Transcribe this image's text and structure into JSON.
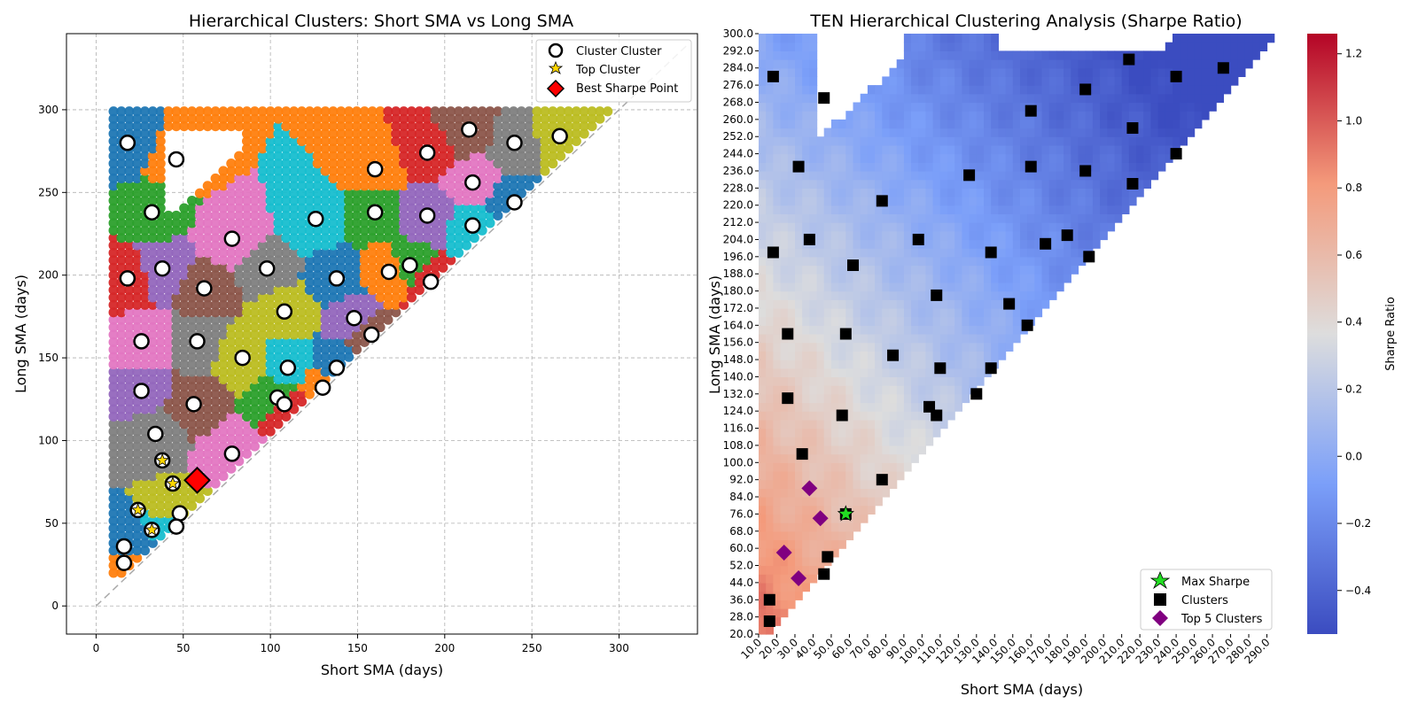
{
  "chart_data": [
    {
      "type": "scatter",
      "title": "Hierarchical Clusters: Short SMA vs Long SMA",
      "xlabel": "Short SMA (days)",
      "ylabel": "Long SMA (days)",
      "xlim": [
        -17,
        345
      ],
      "ylim": [
        -17,
        346
      ],
      "xticks": [
        0,
        50,
        100,
        150,
        200,
        250,
        300
      ],
      "yticks": [
        0,
        50,
        100,
        150,
        200,
        250,
        300
      ],
      "grid": true,
      "legend_position": "top-right",
      "legend": [
        "Cluster Cluster",
        "Top Cluster",
        "Best Sharpe Point"
      ],
      "reference_line": {
        "from": [
          0,
          0
        ],
        "to": [
          340,
          340
        ],
        "style": "dashed",
        "color": "#aaaaaa"
      },
      "cluster_palette": [
        "#1f77b4",
        "#ff7f0e",
        "#2ca02c",
        "#d62728",
        "#9467bd",
        "#8c564b",
        "#e377c2",
        "#7f7f7f",
        "#bcbd22",
        "#17becf"
      ],
      "cluster_centers": [
        [
          18,
          280
        ],
        [
          46,
          270
        ],
        [
          32,
          238
        ],
        [
          18,
          198
        ],
        [
          38,
          204
        ],
        [
          62,
          192
        ],
        [
          78,
          222
        ],
        [
          98,
          204
        ],
        [
          108,
          178
        ],
        [
          126,
          234
        ],
        [
          138,
          198
        ],
        [
          160,
          264
        ],
        [
          160,
          238
        ],
        [
          190,
          274
        ],
        [
          190,
          236
        ],
        [
          214,
          288
        ],
        [
          216,
          256
        ],
        [
          240,
          280
        ],
        [
          266,
          284
        ],
        [
          216,
          230
        ],
        [
          240,
          244
        ],
        [
          168,
          202
        ],
        [
          180,
          206
        ],
        [
          192,
          196
        ],
        [
          148,
          174
        ],
        [
          158,
          164
        ],
        [
          26,
          160
        ],
        [
          58,
          160
        ],
        [
          84,
          150
        ],
        [
          110,
          144
        ],
        [
          138,
          144
        ],
        [
          130,
          132
        ],
        [
          104,
          126
        ],
        [
          108,
          122
        ],
        [
          26,
          130
        ],
        [
          56,
          122
        ],
        [
          78,
          92
        ],
        [
          34,
          104
        ],
        [
          48,
          56
        ],
        [
          46,
          48
        ],
        [
          16,
          36
        ],
        [
          16,
          26
        ]
      ],
      "top_clusters": [
        [
          38,
          88
        ],
        [
          24,
          58
        ],
        [
          44,
          74
        ],
        [
          32,
          46
        ]
      ],
      "best_sharpe_point": [
        58,
        76
      ],
      "series": [
        {
          "name": "Cluster Cluster",
          "values": "cluster_centers"
        },
        {
          "name": "Top Cluster",
          "values": "top_clusters"
        },
        {
          "name": "Best Sharpe Point",
          "values": "best_sharpe_point"
        }
      ]
    },
    {
      "type": "heatmap",
      "title": "TEN Hierarchical Clustering Analysis (Sharpe Ratio)",
      "xlabel": "Short SMA (days)",
      "ylabel": "Long SMA (days)",
      "x_range": [
        10,
        300
      ],
      "y_range": [
        20,
        300
      ],
      "xticks": [
        "10.0",
        "20.0",
        "30.0",
        "40.0",
        "50.0",
        "60.0",
        "70.0",
        "80.0",
        "90.0",
        "100.0",
        "110.0",
        "120.0",
        "130.0",
        "140.0",
        "150.0",
        "160.0",
        "170.0",
        "180.0",
        "190.0",
        "200.0",
        "210.0",
        "220.0",
        "230.0",
        "240.0",
        "250.0",
        "260.0",
        "270.0",
        "280.0",
        "290.0"
      ],
      "yticks": [
        "300.0",
        "292.0",
        "284.0",
        "276.0",
        "268.0",
        "260.0",
        "252.0",
        "244.0",
        "236.0",
        "228.0",
        "220.0",
        "212.0",
        "204.0",
        "196.0",
        "188.0",
        "180.0",
        "172.0",
        "164.0",
        "156.0",
        "148.0",
        "140.0",
        "132.0",
        "124.0",
        "116.0",
        "108.0",
        "100.0",
        "92.0",
        "84.0",
        "76.0",
        "68.0",
        "60.0",
        "52.0",
        "44.0",
        "36.0",
        "28.0",
        "20.0"
      ],
      "colorbar_label": "Sharpe Ratio",
      "colorbar_range": [
        -0.53,
        1.26
      ],
      "colorbar_ticks": [
        "1.2",
        "1.0",
        "0.8",
        "0.6",
        "0.4",
        "0.2",
        "0.0",
        "−0.2",
        "−0.4"
      ],
      "colormap": [
        "#3b4cc0",
        "#dddddd",
        "#b40426"
      ],
      "legend_position": "bottom-right",
      "legend": [
        "Max Sharpe",
        "Clusters",
        "Top 5 Clusters"
      ],
      "max_sharpe": [
        58,
        76
      ],
      "clusters": [
        [
          18,
          280
        ],
        [
          46,
          270
        ],
        [
          32,
          238
        ],
        [
          18,
          198
        ],
        [
          38,
          204
        ],
        [
          62,
          192
        ],
        [
          78,
          222
        ],
        [
          98,
          204
        ],
        [
          108,
          178
        ],
        [
          126,
          234
        ],
        [
          138,
          198
        ],
        [
          160,
          264
        ],
        [
          160,
          238
        ],
        [
          190,
          274
        ],
        [
          190,
          236
        ],
        [
          214,
          288
        ],
        [
          216,
          256
        ],
        [
          240,
          280
        ],
        [
          266,
          284
        ],
        [
          216,
          230
        ],
        [
          240,
          244
        ],
        [
          168,
          202
        ],
        [
          180,
          206
        ],
        [
          192,
          196
        ],
        [
          148,
          174
        ],
        [
          158,
          164
        ],
        [
          26,
          160
        ],
        [
          58,
          160
        ],
        [
          84,
          150
        ],
        [
          110,
          144
        ],
        [
          138,
          144
        ],
        [
          130,
          132
        ],
        [
          104,
          126
        ],
        [
          108,
          122
        ],
        [
          26,
          130
        ],
        [
          56,
          122
        ],
        [
          78,
          92
        ],
        [
          34,
          104
        ],
        [
          48,
          56
        ],
        [
          46,
          48
        ],
        [
          16,
          36
        ],
        [
          16,
          26
        ]
      ],
      "top_5_clusters": [
        [
          38,
          88
        ],
        [
          24,
          58
        ],
        [
          44,
          74
        ],
        [
          32,
          46
        ]
      ],
      "series": [
        {
          "name": "Max Sharpe",
          "values": "max_sharpe"
        },
        {
          "name": "Clusters",
          "values": "clusters"
        },
        {
          "name": "Top 5 Clusters",
          "values": "top_5_clusters"
        }
      ]
    }
  ]
}
